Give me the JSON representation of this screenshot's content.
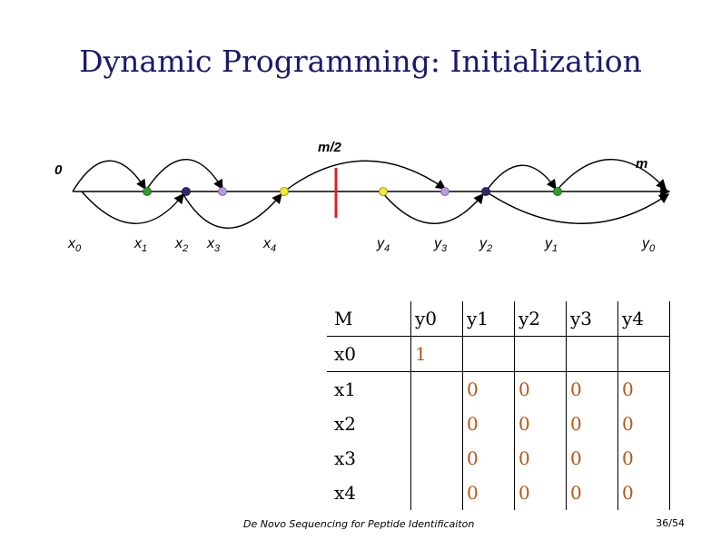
{
  "slide": {
    "title": "Dynamic Programming: Initialization",
    "footer": "De Novo Sequencing for Peptide Identificaiton",
    "page": "36/54"
  },
  "diagram": {
    "start_label": "0",
    "mid_label": "m/2",
    "end_label": "m",
    "x_labels": [
      {
        "base": "x",
        "sub": "0"
      },
      {
        "base": "x",
        "sub": "1"
      },
      {
        "base": "x",
        "sub": "2"
      },
      {
        "base": "x",
        "sub": "3"
      },
      {
        "base": "x",
        "sub": "4"
      }
    ],
    "y_labels": [
      {
        "base": "y",
        "sub": "4"
      },
      {
        "base": "y",
        "sub": "3"
      },
      {
        "base": "y",
        "sub": "2"
      },
      {
        "base": "y",
        "sub": "1"
      },
      {
        "base": "y",
        "sub": "0"
      }
    ],
    "colors": {
      "green": "#2e9e2e",
      "navy": "#2b2b7a",
      "lavender": "#b89ae0",
      "yellow": "#f2ea2a",
      "red": "#e02020"
    }
  },
  "matrix": {
    "corner": "M",
    "columns": [
      "y0",
      "y1",
      "y2",
      "y3",
      "y4"
    ],
    "rows": [
      {
        "label": "x0",
        "cells": [
          "1",
          "",
          "",
          "",
          ""
        ]
      },
      {
        "label": "x1",
        "cells": [
          "",
          "0",
          "0",
          "0",
          "0"
        ]
      },
      {
        "label": "x2",
        "cells": [
          "",
          "0",
          "0",
          "0",
          "0"
        ]
      },
      {
        "label": "x3",
        "cells": [
          "",
          "0",
          "0",
          "0",
          "0"
        ]
      },
      {
        "label": "x4",
        "cells": [
          "",
          "0",
          "0",
          "0",
          "0"
        ]
      }
    ]
  }
}
